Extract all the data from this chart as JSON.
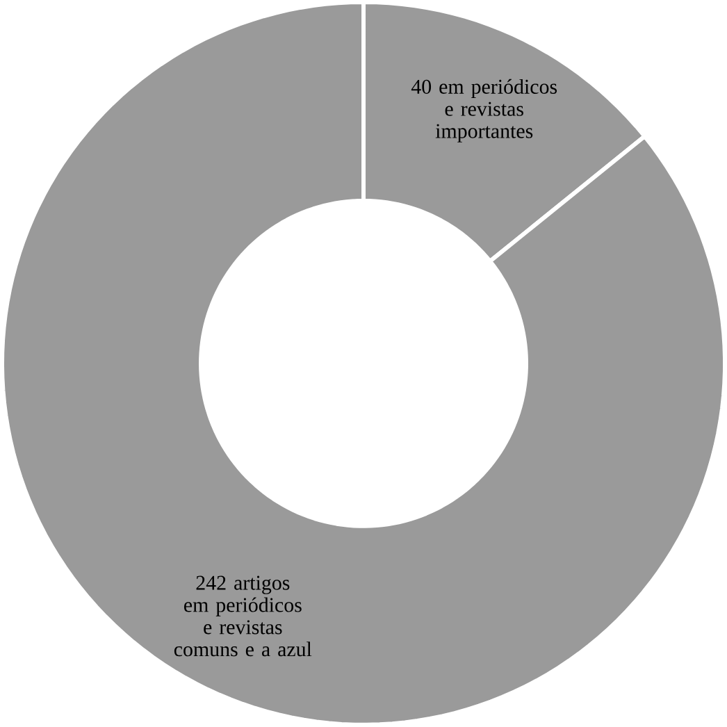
{
  "chart_data": {
    "type": "donut",
    "categories": [
      "em periódicos e revistas importantes",
      "artigos em periódicos e revistas comuns e a azul"
    ],
    "values": [
      40,
      242
    ],
    "colors": [
      "#9a9a9a",
      "#9a9a9a"
    ],
    "data_labels": true
  }
}
